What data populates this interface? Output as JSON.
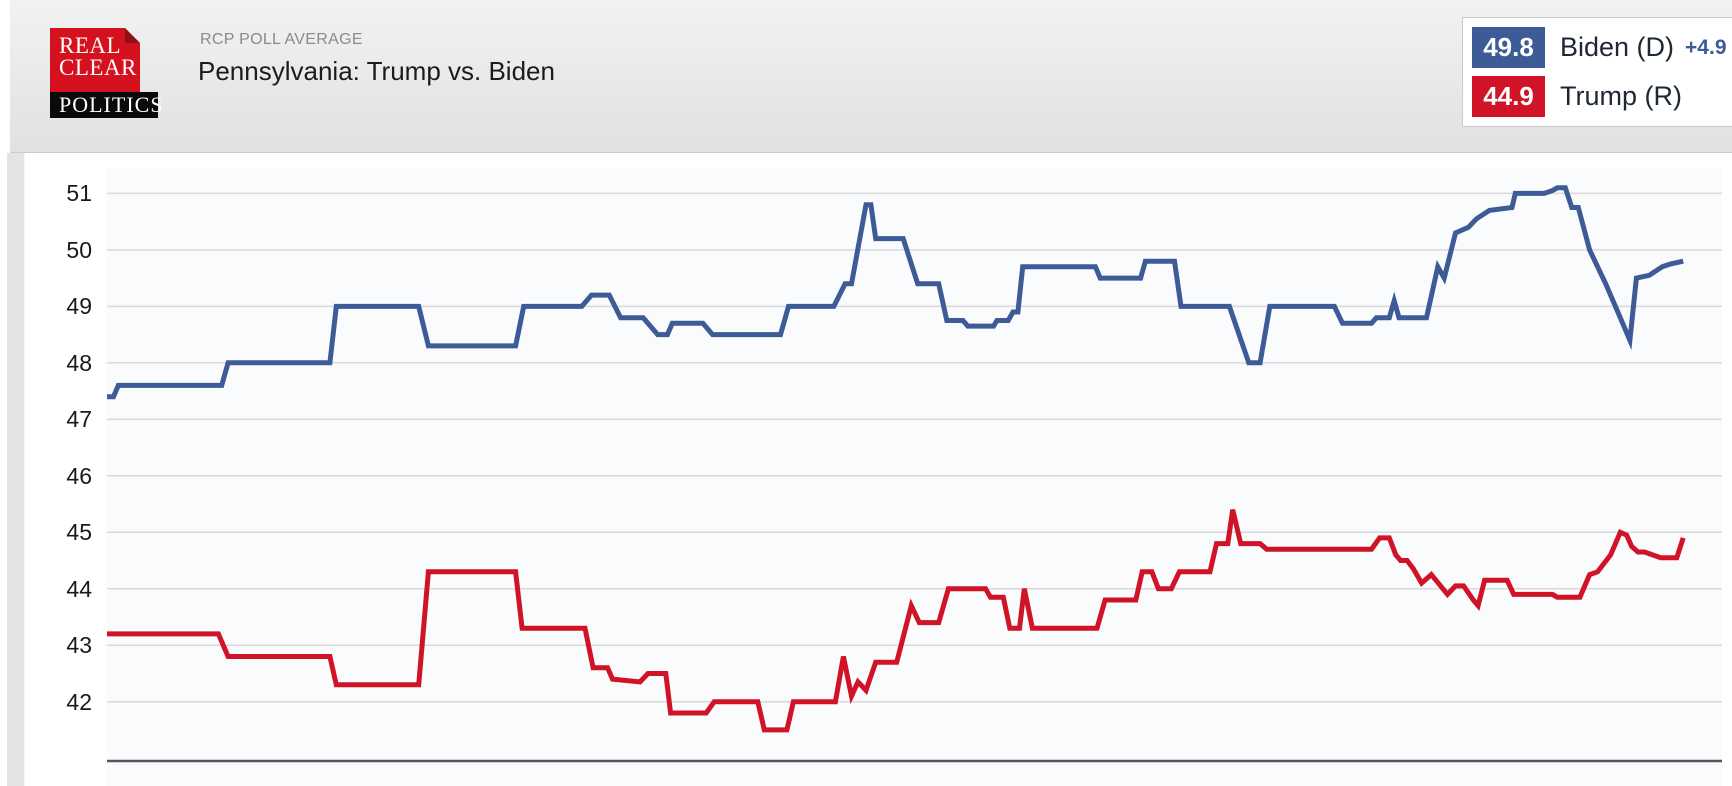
{
  "header": {
    "logo": {
      "line1": "REAL",
      "line2": "CLEAR",
      "line3": "POLITICS"
    },
    "kicker": "RCP POLL AVERAGE",
    "title": "Pennsylvania: Trump vs. Biden"
  },
  "legend": {
    "items": [
      {
        "value": "49.8",
        "label": "Biden (D)",
        "spread": "+4.9",
        "color": "#3d5b97"
      },
      {
        "value": "44.9",
        "label": "Trump (R)",
        "color": "#d01327"
      }
    ]
  },
  "colors": {
    "biden_line": "#3d5b97",
    "trump_line": "#d01327",
    "grid": "#d9d9dc",
    "axis": "#55565a",
    "plot_background": "#fafbfc",
    "spread_text": "#3d5b97"
  },
  "chart_data": {
    "type": "line",
    "title": "Pennsylvania: Trump vs. Biden",
    "subtitle": "RCP POLL AVERAGE",
    "xlabel": "",
    "ylabel": "",
    "x_unit": "percent of visible timeline (no x-axis tick labels shown)",
    "ylim": [
      40.95,
      51.45
    ],
    "yticks": [
      51,
      50,
      49,
      48,
      47,
      46,
      45,
      44,
      43,
      42
    ],
    "grid": "horizontal",
    "legend_position": "top-right",
    "series": [
      {
        "name": "Biden (D)",
        "color": "#3d5b97",
        "current_value": 49.8,
        "spread": "+4.9",
        "points": [
          [
            0,
            47.4
          ],
          [
            0.4,
            47.4
          ],
          [
            0.7,
            47.6
          ],
          [
            7.1,
            47.6
          ],
          [
            7.5,
            48
          ],
          [
            13.8,
            48
          ],
          [
            14.2,
            49
          ],
          [
            19.3,
            49
          ],
          [
            19.9,
            48.3
          ],
          [
            25.3,
            48.3
          ],
          [
            25.8,
            49
          ],
          [
            29.4,
            49
          ],
          [
            30,
            49.2
          ],
          [
            31.1,
            49.2
          ],
          [
            31.8,
            48.8
          ],
          [
            33.2,
            48.8
          ],
          [
            34.1,
            48.5
          ],
          [
            34.7,
            48.5
          ],
          [
            35,
            48.7
          ],
          [
            36.9,
            48.7
          ],
          [
            37.5,
            48.5
          ],
          [
            41.7,
            48.5
          ],
          [
            42.2,
            49
          ],
          [
            45,
            49
          ],
          [
            45.7,
            49.4
          ],
          [
            46.1,
            49.4
          ],
          [
            47,
            50.8
          ],
          [
            47.3,
            50.8
          ],
          [
            47.6,
            50.2
          ],
          [
            49.3,
            50.2
          ],
          [
            50.2,
            49.4
          ],
          [
            51.5,
            49.4
          ],
          [
            52,
            48.75
          ],
          [
            53,
            48.75
          ],
          [
            53.3,
            48.65
          ],
          [
            54.9,
            48.65
          ],
          [
            55.1,
            48.75
          ],
          [
            55.8,
            48.75
          ],
          [
            56.1,
            48.9
          ],
          [
            56.4,
            48.9
          ],
          [
            56.7,
            49.7
          ],
          [
            61.2,
            49.7
          ],
          [
            61.5,
            49.5
          ],
          [
            64,
            49.5
          ],
          [
            64.3,
            49.8
          ],
          [
            66.1,
            49.8
          ],
          [
            66.5,
            49
          ],
          [
            69.5,
            49
          ],
          [
            70.7,
            48
          ],
          [
            71.4,
            48
          ],
          [
            72,
            49
          ],
          [
            76,
            49
          ],
          [
            76.5,
            48.7
          ],
          [
            78.3,
            48.7
          ],
          [
            78.6,
            48.8
          ],
          [
            79.4,
            48.8
          ],
          [
            79.7,
            49.1
          ],
          [
            80,
            48.8
          ],
          [
            81.7,
            48.8
          ],
          [
            82.4,
            49.7
          ],
          [
            82.8,
            49.5
          ],
          [
            83.5,
            50.3
          ],
          [
            84.3,
            50.4
          ],
          [
            84.8,
            50.55
          ],
          [
            85.6,
            50.7
          ],
          [
            87,
            50.75
          ],
          [
            87.2,
            51
          ],
          [
            89,
            51
          ],
          [
            89.5,
            51.05
          ],
          [
            89.8,
            51.1
          ],
          [
            90.3,
            51.1
          ],
          [
            90.7,
            50.75
          ],
          [
            91.1,
            50.75
          ],
          [
            91.8,
            50
          ],
          [
            92.8,
            49.4
          ],
          [
            93.7,
            48.8
          ],
          [
            94.3,
            48.4
          ],
          [
            94.7,
            49.5
          ],
          [
            95.5,
            49.55
          ],
          [
            96.3,
            49.7
          ],
          [
            96.8,
            49.75
          ],
          [
            97.6,
            49.8
          ]
        ]
      },
      {
        "name": "Trump (R)",
        "color": "#d01327",
        "current_value": 44.9,
        "points": [
          [
            0,
            43.2
          ],
          [
            6.9,
            43.2
          ],
          [
            7.5,
            42.8
          ],
          [
            13.8,
            42.8
          ],
          [
            14.2,
            42.3
          ],
          [
            19.3,
            42.3
          ],
          [
            19.9,
            44.3
          ],
          [
            25.3,
            44.3
          ],
          [
            25.7,
            43.3
          ],
          [
            29.6,
            43.3
          ],
          [
            30.1,
            42.6
          ],
          [
            31,
            42.6
          ],
          [
            31.3,
            42.4
          ],
          [
            33,
            42.35
          ],
          [
            33.5,
            42.5
          ],
          [
            34.6,
            42.5
          ],
          [
            34.9,
            41.8
          ],
          [
            37.1,
            41.8
          ],
          [
            37.6,
            42
          ],
          [
            40.3,
            42
          ],
          [
            40.7,
            41.5
          ],
          [
            42.1,
            41.5
          ],
          [
            42.5,
            42
          ],
          [
            45.1,
            42
          ],
          [
            45.6,
            42.8
          ],
          [
            46.1,
            42.1
          ],
          [
            46.5,
            42.35
          ],
          [
            47,
            42.2
          ],
          [
            47.6,
            42.7
          ],
          [
            48.9,
            42.7
          ],
          [
            49.8,
            43.7
          ],
          [
            50.3,
            43.4
          ],
          [
            51.5,
            43.4
          ],
          [
            52.1,
            44
          ],
          [
            54.4,
            44
          ],
          [
            54.7,
            43.85
          ],
          [
            55.5,
            43.85
          ],
          [
            55.9,
            43.3
          ],
          [
            56.5,
            43.3
          ],
          [
            56.8,
            44
          ],
          [
            57.3,
            43.3
          ],
          [
            61.3,
            43.3
          ],
          [
            61.8,
            43.8
          ],
          [
            63.7,
            43.8
          ],
          [
            64.1,
            44.3
          ],
          [
            64.7,
            44.3
          ],
          [
            65.1,
            44
          ],
          [
            65.9,
            44
          ],
          [
            66.4,
            44.3
          ],
          [
            68.3,
            44.3
          ],
          [
            68.7,
            44.8
          ],
          [
            69.4,
            44.8
          ],
          [
            69.7,
            45.4
          ],
          [
            70.2,
            44.8
          ],
          [
            71.4,
            44.8
          ],
          [
            71.8,
            44.7
          ],
          [
            78.3,
            44.7
          ],
          [
            78.8,
            44.9
          ],
          [
            79.4,
            44.9
          ],
          [
            79.8,
            44.6
          ],
          [
            80.1,
            44.5
          ],
          [
            80.5,
            44.5
          ],
          [
            80.9,
            44.35
          ],
          [
            81.4,
            44.1
          ],
          [
            82,
            44.25
          ],
          [
            83,
            43.9
          ],
          [
            83.5,
            44.05
          ],
          [
            84,
            44.05
          ],
          [
            84.6,
            43.8
          ],
          [
            84.9,
            43.7
          ],
          [
            85.3,
            44.15
          ],
          [
            86.7,
            44.15
          ],
          [
            87.1,
            43.9
          ],
          [
            89.5,
            43.9
          ],
          [
            89.8,
            43.85
          ],
          [
            91.2,
            43.85
          ],
          [
            91.8,
            44.25
          ],
          [
            92.3,
            44.3
          ],
          [
            93.1,
            44.6
          ],
          [
            93.7,
            45
          ],
          [
            94.1,
            44.95
          ],
          [
            94.4,
            44.75
          ],
          [
            94.8,
            44.65
          ],
          [
            95.2,
            44.65
          ],
          [
            95.7,
            44.6
          ],
          [
            96.2,
            44.55
          ],
          [
            97.2,
            44.55
          ],
          [
            97.6,
            44.9
          ]
        ]
      }
    ]
  }
}
